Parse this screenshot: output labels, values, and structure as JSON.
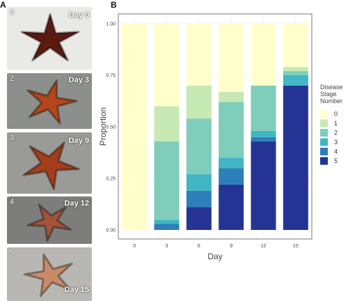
{
  "panel_labels": {
    "a": "A",
    "b": "B"
  },
  "photos": [
    {
      "stage": "0",
      "day": "Day 0",
      "bg": "#e9e9e6",
      "star": "#5a1a12"
    },
    {
      "stage": "2",
      "day": "Day 3",
      "bg": "#8d8f8c",
      "star": "#b3461a"
    },
    {
      "stage": "3",
      "day": "Day 9",
      "bg": "#9a9a97",
      "star": "#a23e1c"
    },
    {
      "stage": "4",
      "day": "Day 12",
      "bg": "#7d7e7b",
      "star": "#a3533a"
    },
    {
      "stage": "5",
      "day": "Day 15",
      "bg": "#b8b7b3",
      "star": "#c98a6a"
    }
  ],
  "chart_data": {
    "type": "bar",
    "stacked": true,
    "xlabel": "Day",
    "ylabel": "Proportion",
    "categories": [
      "0",
      "3",
      "6",
      "9",
      "12",
      "15"
    ],
    "ylim": [
      0,
      1
    ],
    "yticks": [
      "0.00",
      "0.25",
      "0.50",
      "0.75",
      "1.00"
    ],
    "grid": true,
    "legend": {
      "title": [
        "Disease",
        "Stage",
        "Number"
      ],
      "position": "right"
    },
    "series": [
      {
        "name": "5",
        "color": "#253494",
        "values": [
          0,
          0,
          0.11,
          0.22,
          0.43,
          0.7
        ]
      },
      {
        "name": "4",
        "color": "#2c7fb8",
        "values": [
          0,
          0.03,
          0.08,
          0.08,
          0.02,
          0
        ]
      },
      {
        "name": "3",
        "color": "#41b6c4",
        "values": [
          0,
          0.02,
          0.08,
          0.05,
          0.03,
          0.05
        ]
      },
      {
        "name": "2",
        "color": "#7fcdbb",
        "values": [
          0,
          0.38,
          0.27,
          0.27,
          0.22,
          0.02
        ]
      },
      {
        "name": "1",
        "color": "#c7e9b4",
        "values": [
          0,
          0.17,
          0.16,
          0.05,
          0,
          0.02
        ]
      },
      {
        "name": "0",
        "color": "#ffffcc",
        "values": [
          1,
          0.4,
          0.3,
          0.33,
          0.3,
          0.21
        ]
      }
    ]
  }
}
